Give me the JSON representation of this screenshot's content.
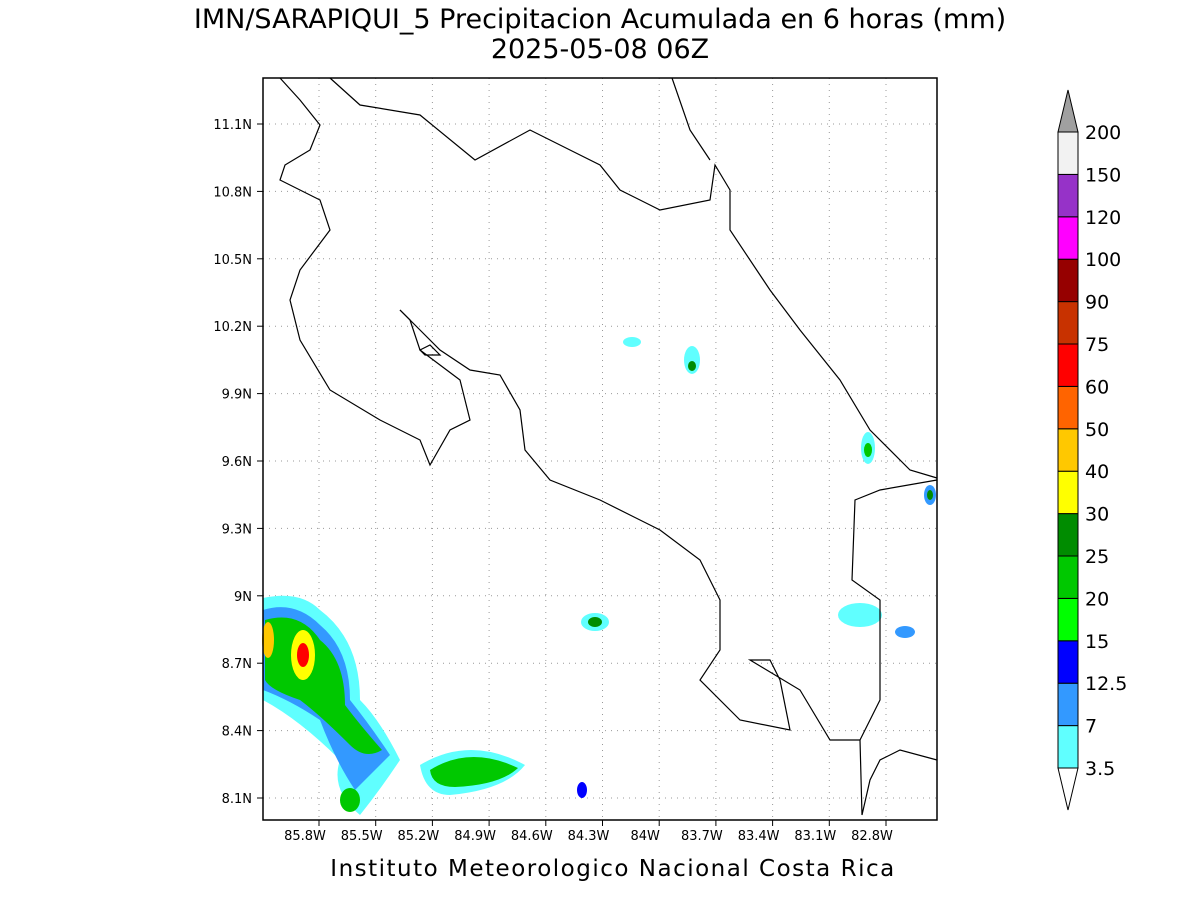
{
  "header": {
    "title": "IMN/SARAPIQUI_5 Precipitacion Acumulada en 6 horas (mm)",
    "subtitle": "2025-05-08 06Z"
  },
  "map": {
    "lon_labels": [
      "85.8W",
      "85.5W",
      "85.2W",
      "84.9W",
      "84.6W",
      "84.3W",
      "84W",
      "83.7W",
      "83.4W",
      "83.1W",
      "82.8W"
    ],
    "lat_labels": [
      "11.1N",
      "10.8N",
      "10.5N",
      "10.2N",
      "9.9N",
      "9.6N",
      "9.3N",
      "9N",
      "8.7N",
      "8.4N",
      "8.1N"
    ]
  },
  "colorbar": {
    "levels": [
      3.5,
      7,
      12.5,
      15,
      20,
      25,
      30,
      40,
      50,
      60,
      75,
      90,
      100,
      120,
      150,
      200
    ],
    "colors": [
      "#60ffff",
      "#3399ff",
      "#0000ff",
      "#00ff00",
      "#00c800",
      "#008c00",
      "#ffff00",
      "#ffc800",
      "#ff6400",
      "#ff0000",
      "#c83200",
      "#960000",
      "#ff00ff",
      "#9632c8",
      "#f2f2f2"
    ],
    "under_color": "#ffffff",
    "over_color": "#a0a0a0"
  },
  "footer": {
    "credit": "Instituto Meteorologico Nacional Costa Rica"
  }
}
